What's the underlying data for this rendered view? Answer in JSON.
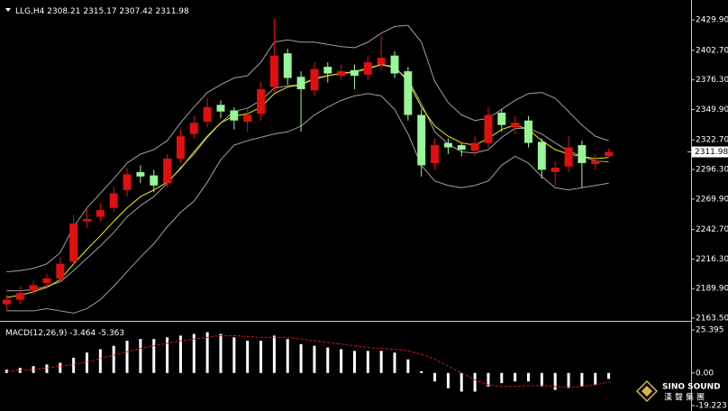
{
  "chart_data": [
    {
      "type": "candlestick",
      "symbol": "LLG,H4",
      "header_values": [
        2308.21,
        2315.17,
        2307.42,
        2311.98
      ],
      "last_price": {
        "value": 2311.98,
        "label": "2311.98"
      },
      "up_color": "#e01010",
      "down_color": "#98f598",
      "open": [
        2176,
        2180,
        2188,
        2195,
        2199,
        2214,
        2250,
        2254,
        2262,
        2278,
        2294,
        2291,
        2284,
        2306,
        2328,
        2339,
        2354,
        2349,
        2339,
        2346,
        2370,
        2400,
        2379,
        2367,
        2388,
        2380,
        2385,
        2381,
        2390,
        2398,
        2384,
        2345,
        2302,
        2320,
        2318,
        2313,
        2320,
        2347,
        2334,
        2340,
        2321,
        2294,
        2299,
        2318,
        2301,
        2308.21
      ],
      "high": [
        2184,
        2192,
        2197,
        2203,
        2218,
        2256,
        2262,
        2266,
        2281,
        2298,
        2300,
        2296,
        2310,
        2332,
        2344,
        2360,
        2358,
        2352,
        2350,
        2374,
        2431,
        2404,
        2384,
        2392,
        2392,
        2390,
        2390,
        2398,
        2416,
        2402,
        2388,
        2350,
        2324,
        2324,
        2320,
        2326,
        2352,
        2350,
        2344,
        2344,
        2324,
        2304,
        2326,
        2322,
        2310,
        2315.17
      ],
      "low": [
        2170,
        2176,
        2184,
        2190,
        2196,
        2210,
        2244,
        2250,
        2258,
        2272,
        2284,
        2276,
        2280,
        2302,
        2324,
        2334,
        2342,
        2332,
        2330,
        2340,
        2364,
        2372,
        2330,
        2362,
        2374,
        2376,
        2368,
        2376,
        2384,
        2378,
        2340,
        2290,
        2296,
        2310,
        2308,
        2308,
        2316,
        2330,
        2328,
        2316,
        2288,
        2282,
        2294,
        2280,
        2296,
        2307.42
      ],
      "close": [
        2180,
        2186,
        2193,
        2199,
        2212,
        2248,
        2252,
        2260,
        2275,
        2292,
        2290,
        2282,
        2306,
        2326,
        2338,
        2352,
        2348,
        2340,
        2345,
        2368,
        2398,
        2378,
        2368,
        2386,
        2382,
        2384,
        2380,
        2392,
        2396,
        2382,
        2345,
        2300,
        2318,
        2316,
        2314,
        2320,
        2345,
        2336,
        2338,
        2320,
        2296,
        2298,
        2316,
        2302,
        2304,
        2311.98
      ],
      "lines": [
        {
          "color": "#a0a0a0",
          "values": [
            2205,
            2206,
            2208,
            2212,
            2222,
            2245,
            2262,
            2275,
            2288,
            2302,
            2310,
            2314,
            2322,
            2338,
            2352,
            2365,
            2372,
            2378,
            2380,
            2392,
            2410,
            2412,
            2410,
            2410,
            2408,
            2406,
            2405,
            2410,
            2418,
            2424,
            2425,
            2410,
            2375,
            2356,
            2345,
            2340,
            2342,
            2350,
            2358,
            2364,
            2365,
            2360,
            2348,
            2336,
            2326,
            2322
          ]
        },
        {
          "color": "#a0a0a0",
          "values": [
            2188,
            2188,
            2189,
            2192,
            2196,
            2206,
            2217,
            2228,
            2240,
            2254,
            2264,
            2272,
            2284,
            2298,
            2310,
            2325,
            2338,
            2348,
            2351,
            2358,
            2369,
            2371,
            2372,
            2378,
            2380,
            2382,
            2384,
            2387,
            2390,
            2387,
            2377,
            2355,
            2330,
            2319,
            2312,
            2311,
            2314,
            2325,
            2333,
            2333,
            2328,
            2320,
            2313,
            2308,
            2304,
            2303
          ]
        },
        {
          "color": "#a0a0a0",
          "values": [
            2170,
            2170,
            2170,
            2172,
            2170,
            2168,
            2172,
            2180,
            2192,
            2205,
            2218,
            2230,
            2245,
            2258,
            2268,
            2285,
            2305,
            2318,
            2322,
            2325,
            2328,
            2330,
            2335,
            2345,
            2352,
            2358,
            2362,
            2364,
            2362,
            2350,
            2328,
            2300,
            2286,
            2282,
            2280,
            2282,
            2286,
            2300,
            2308,
            2302,
            2290,
            2280,
            2278,
            2280,
            2282,
            2284
          ]
        },
        {
          "color": "#f0f000",
          "values": [
            2182,
            2184,
            2187,
            2191,
            2198,
            2212,
            2225,
            2237,
            2250,
            2262,
            2272,
            2278,
            2285,
            2297,
            2312,
            2326,
            2338,
            2344,
            2346,
            2352,
            2364,
            2370,
            2372,
            2377,
            2380,
            2382,
            2383,
            2386,
            2390,
            2388,
            2375,
            2352,
            2335,
            2326,
            2320,
            2318,
            2324,
            2332,
            2336,
            2332,
            2322,
            2314,
            2310,
            2308,
            2306,
            2307
          ]
        }
      ],
      "ylim": [
        2162.7,
        2441.2
      ],
      "yticks": [
        {
          "value": 2429.9,
          "label": "2429.90"
        },
        {
          "value": 2402.7,
          "label": "2402.70"
        },
        {
          "value": 2376.3,
          "label": "2376.30"
        },
        {
          "value": 2349.9,
          "label": "2349.90"
        },
        {
          "value": 2322.7,
          "label": "2322.70"
        },
        {
          "value": 2296.3,
          "label": "2296.30"
        },
        {
          "value": 2269.9,
          "label": "2269.90"
        },
        {
          "value": 2242.7,
          "label": "2242.70"
        },
        {
          "value": 2216.3,
          "label": "2216.30"
        },
        {
          "value": 2189.9,
          "label": "2189.90"
        },
        {
          "value": 2163.5,
          "label": "2163.50"
        }
      ],
      "grid": false
    },
    {
      "type": "macd",
      "label": "MACD(12,26,9)",
      "header_values": [
        -3.464,
        -5.363
      ],
      "histogram": {
        "color": "#ffffff",
        "values": [
          2,
          3,
          4,
          5,
          6,
          9,
          12,
          14,
          16,
          19,
          20,
          20,
          21,
          22,
          23,
          24,
          23,
          21,
          19,
          19,
          22,
          20,
          17,
          16,
          15,
          14,
          13,
          13,
          13,
          12,
          8,
          1,
          -5,
          -9,
          -11,
          -11,
          -8,
          -6,
          -5,
          -5,
          -8,
          -10,
          -9,
          -8,
          -7,
          -3.464
        ]
      },
      "signal": {
        "color": "#e01010",
        "values": [
          1,
          1.5,
          2,
          3,
          4,
          5,
          6.5,
          8.5,
          10.5,
          12.5,
          14.5,
          16,
          17.5,
          19,
          20,
          21,
          22,
          22,
          21.5,
          21,
          21,
          21,
          20,
          19,
          18,
          17,
          16,
          15,
          14.5,
          14,
          13,
          11,
          8,
          4,
          0,
          -4,
          -7,
          -8,
          -8,
          -7.5,
          -7.5,
          -8,
          -8.5,
          -8,
          -7,
          -5.363
        ]
      },
      "ylim": [
        -19.223,
        25.395
      ],
      "yticks": [
        25.395,
        {
          "value": 0,
          "label": "0.00"
        },
        -19.223
      ]
    }
  ],
  "watermark": {
    "brand": "SINO SOUND",
    "brand_cn": "漢聲集團"
  }
}
